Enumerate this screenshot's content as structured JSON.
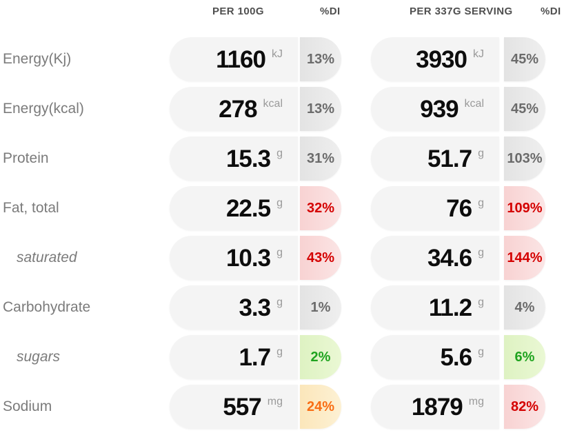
{
  "panel": {
    "columns": {
      "per_100g_label": "PER 100G",
      "per_100g_di_label": "%DI",
      "per_serving_label": "PER 337G SERVING",
      "per_serving_di_label": "%DI"
    },
    "colors": {
      "value_pill_bg": "#f4f4f4",
      "gray_di_bg": "#e6e6e6",
      "gray_di_text": "#6b6b6b",
      "red_di_bg": "#f9d6d6",
      "red_di_text": "#d40000",
      "green_di_bg": "#e2f4c7",
      "green_di_text": "#1fa31f",
      "orange_di_bg": "#fbeac4",
      "orange_di_text": "#f96d13",
      "value_text": "#0d0d0d",
      "unit_text": "#9a9a9a",
      "label_text": "#7b7b7b",
      "header_text": "#4f4f4f"
    },
    "rows": [
      {
        "label": "Energy(Kj)",
        "sub": false,
        "per_100g": {
          "value": "1160",
          "unit": "kJ",
          "di": "13%",
          "di_color": "gray"
        },
        "per_serving": {
          "value": "3930",
          "unit": "kJ",
          "di": "45%",
          "di_color": "gray"
        }
      },
      {
        "label": "Energy(kcal)",
        "sub": false,
        "per_100g": {
          "value": "278",
          "unit": "kcal",
          "di": "13%",
          "di_color": "gray"
        },
        "per_serving": {
          "value": "939",
          "unit": "kcal",
          "di": "45%",
          "di_color": "gray"
        }
      },
      {
        "label": "Protein",
        "sub": false,
        "per_100g": {
          "value": "15.3",
          "unit": "g",
          "di": "31%",
          "di_color": "gray"
        },
        "per_serving": {
          "value": "51.7",
          "unit": "g",
          "di": "103%",
          "di_color": "gray"
        }
      },
      {
        "label": "Fat, total",
        "sub": false,
        "per_100g": {
          "value": "22.5",
          "unit": "g",
          "di": "32%",
          "di_color": "red"
        },
        "per_serving": {
          "value": "76",
          "unit": "g",
          "di": "109%",
          "di_color": "red"
        }
      },
      {
        "label": "saturated",
        "sub": true,
        "per_100g": {
          "value": "10.3",
          "unit": "g",
          "di": "43%",
          "di_color": "red"
        },
        "per_serving": {
          "value": "34.6",
          "unit": "g",
          "di": "144%",
          "di_color": "red"
        }
      },
      {
        "label": "Carbohydrate",
        "sub": false,
        "per_100g": {
          "value": "3.3",
          "unit": "g",
          "di": "1%",
          "di_color": "gray"
        },
        "per_serving": {
          "value": "11.2",
          "unit": "g",
          "di": "4%",
          "di_color": "gray"
        }
      },
      {
        "label": "sugars",
        "sub": true,
        "per_100g": {
          "value": "1.7",
          "unit": "g",
          "di": "2%",
          "di_color": "green"
        },
        "per_serving": {
          "value": "5.6",
          "unit": "g",
          "di": "6%",
          "di_color": "green"
        }
      },
      {
        "label": "Sodium",
        "sub": false,
        "per_100g": {
          "value": "557",
          "unit": "mg",
          "di": "24%",
          "di_color": "orange"
        },
        "per_serving": {
          "value": "1879",
          "unit": "mg",
          "di": "82%",
          "di_color": "red"
        }
      }
    ]
  }
}
